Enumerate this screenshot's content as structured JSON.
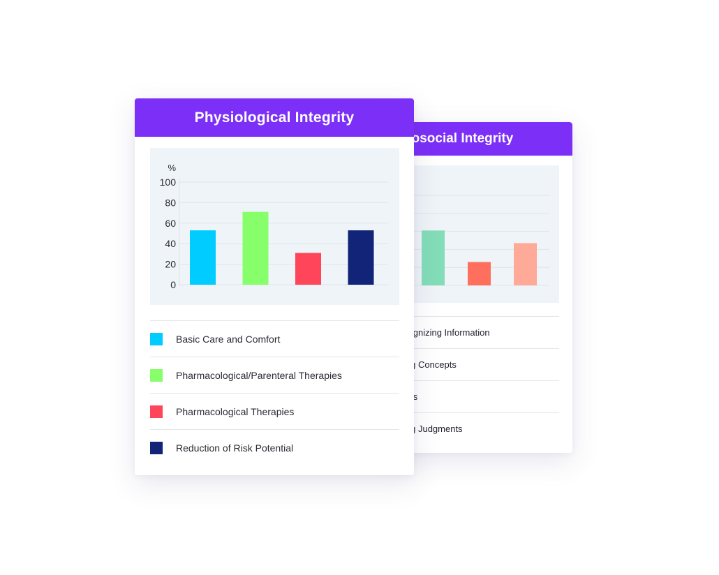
{
  "front_card": {
    "title": "Physiological Integrity",
    "legend": [
      {
        "label": "Basic Care and Comfort",
        "color": "#00ccff"
      },
      {
        "label": "Pharmacological/Parenteral Therapies",
        "color": "#86ff6b"
      },
      {
        "label": "Pharmacological Therapies",
        "color": "#ff4559"
      },
      {
        "label": "Reduction of Risk Potential",
        "color": "#112478"
      }
    ]
  },
  "back_card": {
    "title": "nosocial Integrity",
    "legend": [
      {
        "label": "cognizing Information"
      },
      {
        "label": "ing Concepts"
      },
      {
        "label": "ties"
      },
      {
        "label": "ing Judgments"
      }
    ]
  },
  "chart_data": [
    {
      "type": "bar",
      "categories": [
        "Basic Care and Comfort",
        "Pharmacological/Parenteral Therapies",
        "Pharmacological Therapies",
        "Reduction of Risk Potential"
      ],
      "values": [
        53,
        71,
        31,
        53
      ],
      "colors": [
        "#00ccff",
        "#86ff6b",
        "#ff4559",
        "#112478"
      ],
      "ylabel": "%",
      "ylim": [
        0,
        100
      ],
      "yticks": [
        0,
        20,
        40,
        60,
        80,
        100
      ],
      "grid": true
    },
    {
      "type": "bar",
      "values": [
        61,
        26,
        47
      ],
      "colors": [
        "#83ddb8",
        "#ff6f5d",
        "#ffaa98"
      ],
      "ylim": [
        0,
        100
      ],
      "grid": true
    }
  ]
}
